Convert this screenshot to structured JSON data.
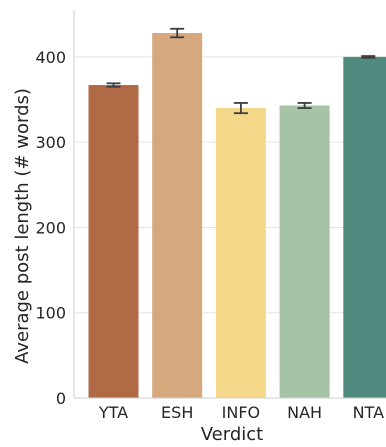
{
  "chart_data": {
    "type": "bar",
    "title": "",
    "xlabel": "Verdict",
    "ylabel": "Average post length (# words)",
    "categories": [
      "YTA",
      "ESH",
      "INFO",
      "NAH",
      "NTA"
    ],
    "values": [
      367,
      428,
      340,
      343,
      400
    ],
    "error_bars": [
      [
        365,
        369
      ],
      [
        423,
        433
      ],
      [
        334,
        346
      ],
      [
        340,
        346
      ],
      [
        399,
        401
      ]
    ],
    "colors": [
      "#b06a45",
      "#d6a87e",
      "#f4d789",
      "#a6c3a6",
      "#4f8b7e"
    ],
    "ylim": [
      0,
      455
    ],
    "yticks": [
      0,
      100,
      200,
      300,
      400
    ],
    "grid": true,
    "legend": null
  }
}
